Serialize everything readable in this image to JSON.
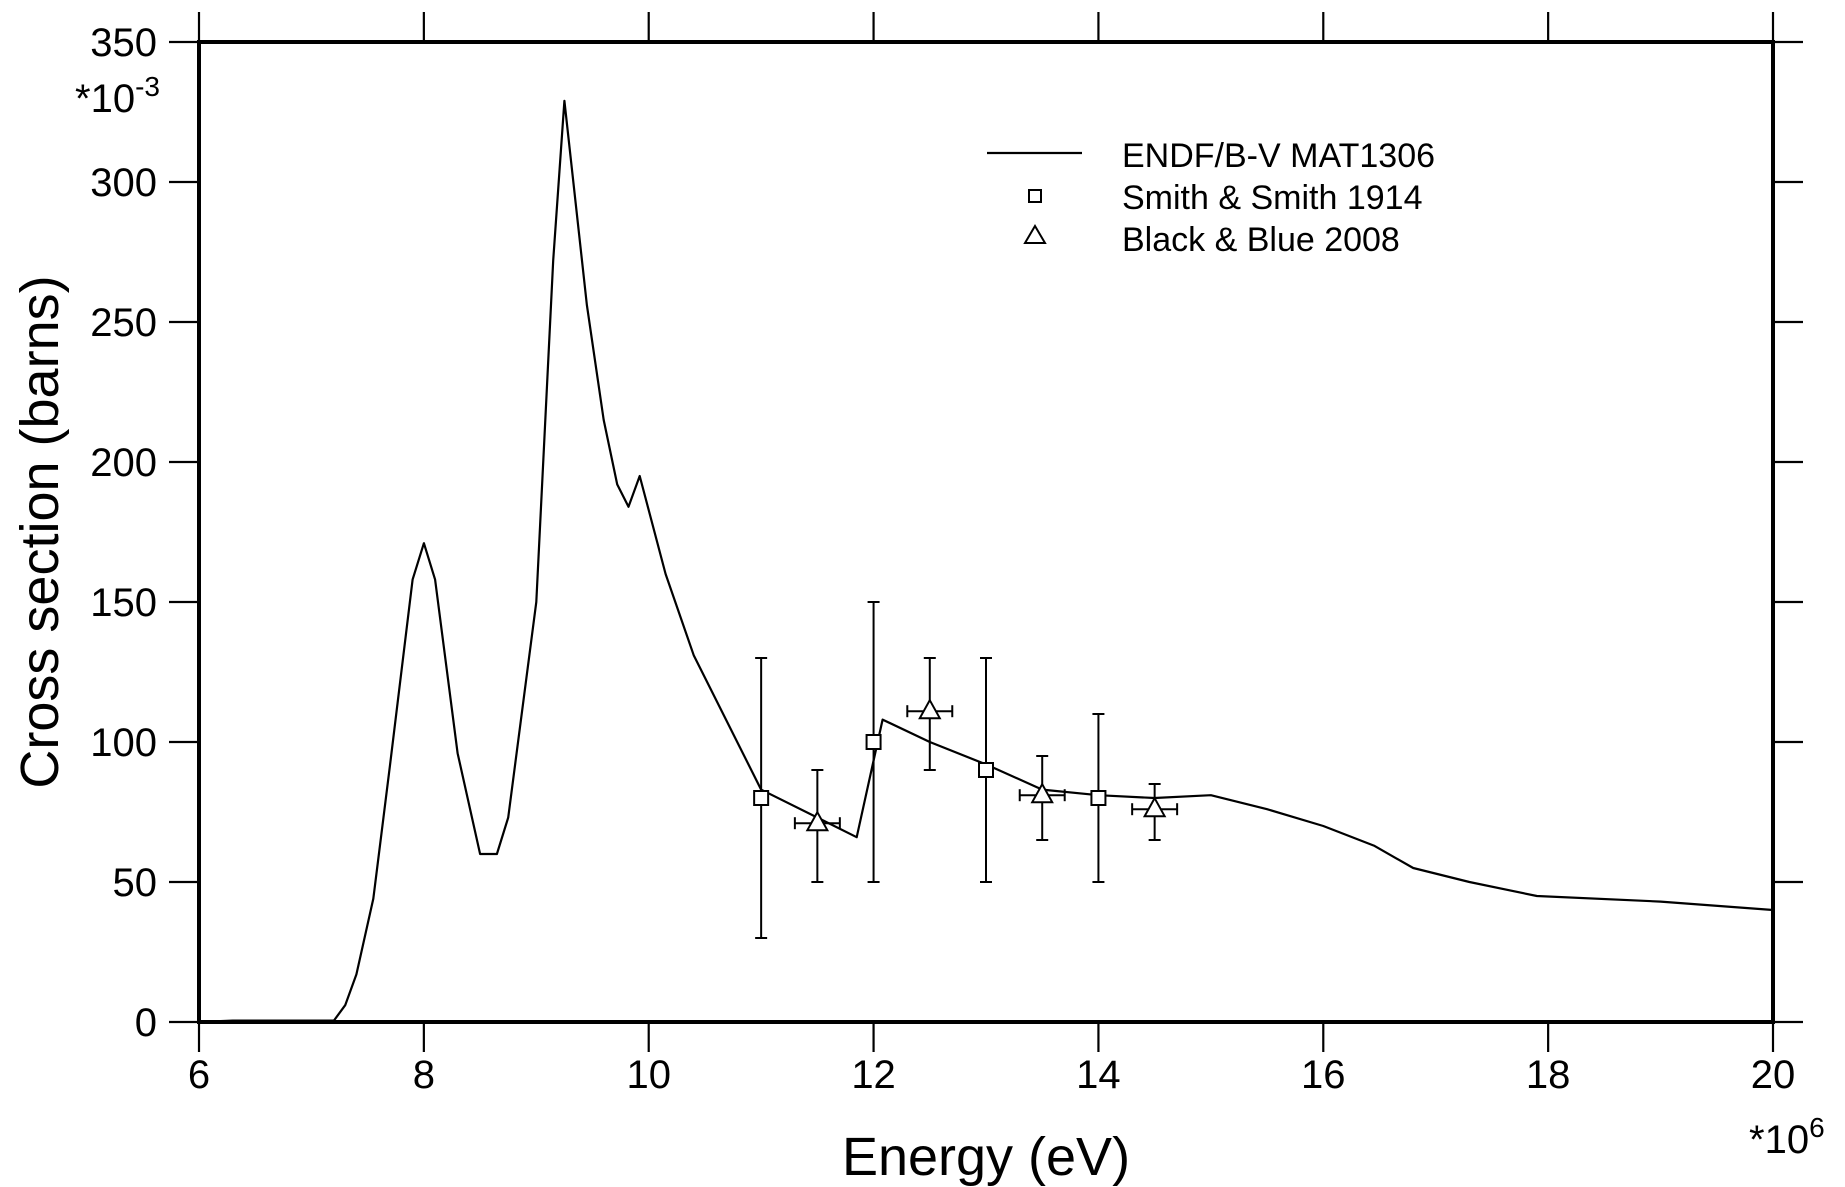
{
  "chart_data": {
    "type": "line",
    "xlabel": "Energy (eV)",
    "ylabel": "Cross section (barns)",
    "x_multiplier": "*10",
    "x_multiplier_exp": "6",
    "y_multiplier": "*10",
    "y_multiplier_exp": "-3",
    "xlim": [
      6,
      20
    ],
    "ylim": [
      0,
      350
    ],
    "x_ticks": [
      6,
      8,
      10,
      12,
      14,
      16,
      18,
      20
    ],
    "x_tick_labels": [
      "6",
      "8",
      "10",
      "12",
      "14",
      "16",
      "18",
      "20"
    ],
    "y_ticks": [
      0,
      50,
      100,
      150,
      200,
      250,
      300,
      350
    ],
    "y_tick_labels": [
      "0",
      "50",
      "100",
      "150",
      "200",
      "250",
      "300",
      "350"
    ],
    "grid": false,
    "legend_position": "top-right",
    "series": [
      {
        "name": "ENDF/B-V MAT1306",
        "style": "line",
        "x": [
          6.0,
          6.3,
          7.2,
          7.3,
          7.4,
          7.55,
          7.7,
          7.9,
          8.0,
          8.1,
          8.3,
          8.5,
          8.65,
          8.75,
          9.0,
          9.15,
          9.25,
          9.45,
          9.6,
          9.72,
          9.82,
          9.92,
          10.15,
          10.4,
          11.0,
          11.55,
          11.85,
          12.08,
          12.5,
          13.0,
          13.5,
          14.0,
          14.5,
          15.0,
          15.5,
          16.0,
          16.45,
          16.8,
          17.3,
          17.9,
          19.0,
          20.0
        ],
        "y": [
          0,
          0.5,
          0.5,
          6,
          17,
          44,
          92,
          158,
          171,
          158,
          96,
          60,
          60,
          73,
          150,
          272,
          329,
          256,
          215,
          192,
          184,
          195,
          160,
          131,
          83,
          72,
          66,
          108,
          100,
          92,
          83,
          81,
          80,
          81,
          76,
          70,
          63,
          55,
          50,
          45,
          43,
          40
        ]
      },
      {
        "name": "Smith & Smith 1914",
        "style": "square",
        "points": [
          {
            "x": 11.0,
            "y": 80,
            "ylow": 30,
            "yhigh": 130
          },
          {
            "x": 12.0,
            "y": 100,
            "ylow": 50,
            "yhigh": 150
          },
          {
            "x": 13.0,
            "y": 90,
            "ylow": 50,
            "yhigh": 130
          },
          {
            "x": 14.0,
            "y": 80,
            "ylow": 50,
            "yhigh": 110
          }
        ]
      },
      {
        "name": "Black & Blue 2008",
        "style": "triangle",
        "points": [
          {
            "x": 11.5,
            "y": 71,
            "ylow": 50,
            "yhigh": 90,
            "xlow": 11.3,
            "xhigh": 11.7
          },
          {
            "x": 12.5,
            "y": 111,
            "ylow": 90,
            "yhigh": 130,
            "xlow": 12.3,
            "xhigh": 12.7
          },
          {
            "x": 13.5,
            "y": 81,
            "ylow": 65,
            "yhigh": 95,
            "xlow": 13.3,
            "xhigh": 13.7
          },
          {
            "x": 14.5,
            "y": 76,
            "ylow": 65,
            "yhigh": 85,
            "xlow": 14.3,
            "xhigh": 14.7
          }
        ]
      }
    ]
  }
}
